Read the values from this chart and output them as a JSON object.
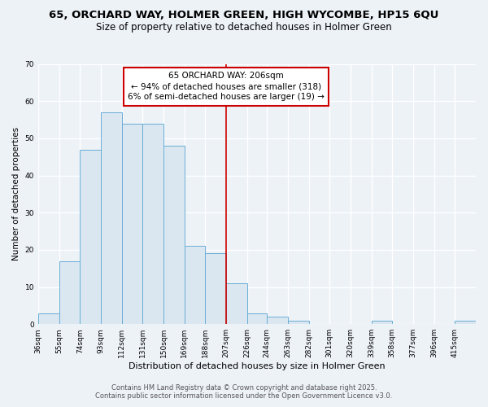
{
  "title": "65, ORCHARD WAY, HOLMER GREEN, HIGH WYCOMBE, HP15 6QU",
  "subtitle": "Size of property relative to detached houses in Holmer Green",
  "xlabel": "Distribution of detached houses by size in Holmer Green",
  "ylabel": "Number of detached properties",
  "bar_labels": [
    "36sqm",
    "55sqm",
    "74sqm",
    "93sqm",
    "112sqm",
    "131sqm",
    "150sqm",
    "169sqm",
    "188sqm",
    "207sqm",
    "226sqm",
    "244sqm",
    "263sqm",
    "282sqm",
    "301sqm",
    "320sqm",
    "339sqm",
    "358sqm",
    "377sqm",
    "396sqm",
    "415sqm"
  ],
  "bar_values": [
    3,
    17,
    47,
    57,
    54,
    54,
    48,
    21,
    19,
    11,
    3,
    2,
    1,
    0,
    0,
    0,
    1,
    0,
    0,
    0,
    1
  ],
  "bin_edges": [
    36,
    55,
    74,
    93,
    112,
    131,
    150,
    169,
    188,
    207,
    226,
    244,
    263,
    282,
    301,
    320,
    339,
    358,
    377,
    396,
    415,
    434
  ],
  "bar_color": "#dae6f0",
  "bar_edge_color": "#6aaed6",
  "vline_x": 207,
  "vline_color": "#cc0000",
  "ylim": [
    0,
    70
  ],
  "yticks": [
    0,
    10,
    20,
    30,
    40,
    50,
    60,
    70
  ],
  "annotation_title": "65 ORCHARD WAY: 206sqm",
  "annotation_line1": "← 94% of detached houses are smaller (318)",
  "annotation_line2": "6% of semi-detached houses are larger (19) →",
  "annotation_box_color": "#cc0000",
  "footer_line1": "Contains HM Land Registry data © Crown copyright and database right 2025.",
  "footer_line2": "Contains public sector information licensed under the Open Government Licence v3.0.",
  "bg_color": "#edf2f7",
  "grid_color": "#ffffff",
  "title_fontsize": 9.5,
  "subtitle_fontsize": 8.5,
  "xlabel_fontsize": 8,
  "ylabel_fontsize": 7.5,
  "tick_fontsize": 6.5,
  "annotation_fontsize": 7.5,
  "footer_fontsize": 6
}
